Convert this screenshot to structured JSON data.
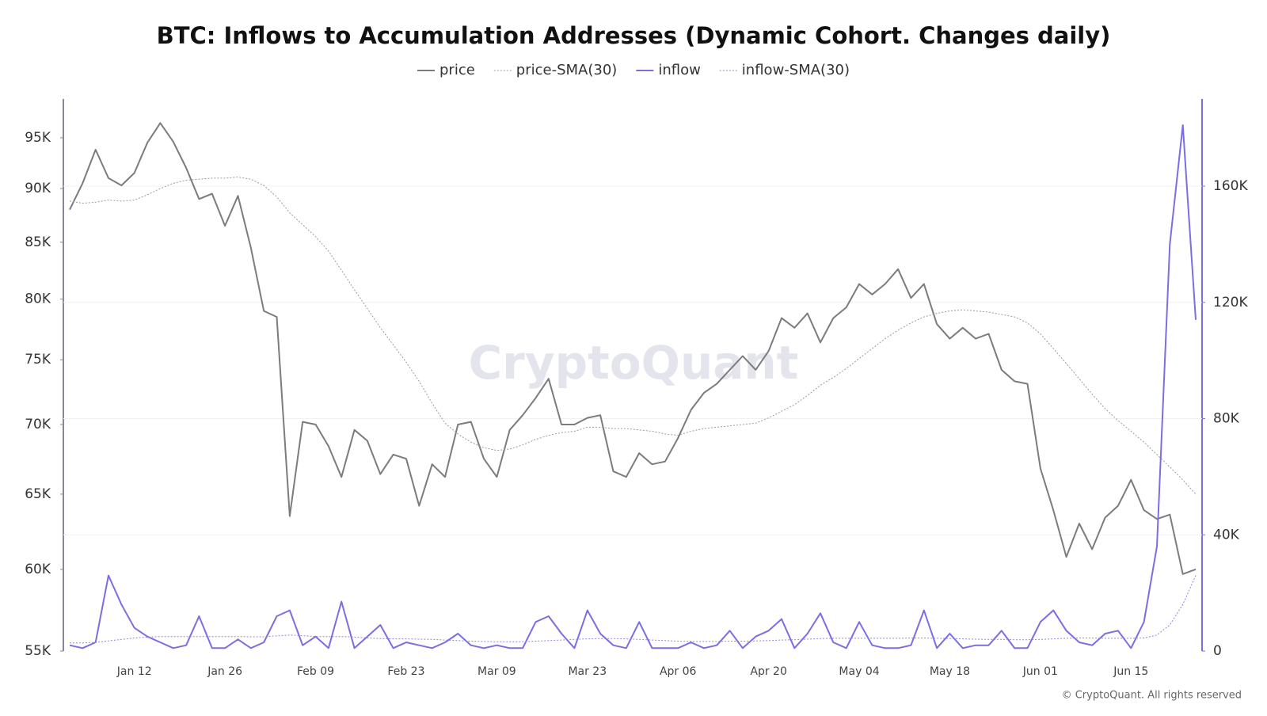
{
  "chart_data": {
    "type": "line",
    "title": "BTC: Inflows to Accumulation Addresses (Dynamic Cohort. Changes daily)",
    "watermark": "CryptoQuant",
    "copyright": "© CryptoQuant. All rights reserved",
    "categories": [
      null,
      null,
      null,
      null,
      null,
      "Jan 12",
      null,
      null,
      null,
      null,
      null,
      null,
      "Jan 26",
      null,
      null,
      null,
      null,
      null,
      null,
      "Feb 09",
      null,
      null,
      null,
      null,
      null,
      null,
      "Feb 23",
      null,
      null,
      null,
      null,
      null,
      null,
      "Mar 09",
      null,
      null,
      null,
      null,
      null,
      null,
      "Mar 23",
      null,
      null,
      null,
      null,
      null,
      null,
      "Apr 06",
      null,
      null,
      null,
      null,
      null,
      null,
      "Apr 20",
      null,
      null,
      null,
      null,
      null,
      null,
      "May 04",
      null,
      null,
      null,
      null,
      null,
      null,
      "May 18",
      null,
      null,
      null,
      null,
      null,
      null,
      "Jun 01",
      null,
      null,
      null,
      null,
      null,
      null,
      "Jun 15",
      null,
      null,
      null,
      null,
      null
    ],
    "ylim": [
      55000,
      99000
    ],
    "y_log_scale": true,
    "yticks": [
      {
        "value": 55000,
        "label": "55K"
      },
      {
        "value": 60000,
        "label": "60K"
      },
      {
        "value": 65000,
        "label": "65K"
      },
      {
        "value": 70000,
        "label": "70K"
      },
      {
        "value": 75000,
        "label": "75K"
      },
      {
        "value": 80000,
        "label": "80K"
      },
      {
        "value": 85000,
        "label": "85K"
      },
      {
        "value": 90000,
        "label": "90K"
      },
      {
        "value": 95000,
        "label": "95K"
      }
    ],
    "y2lim": [
      0,
      190000
    ],
    "y2ticks": [
      0,
      {
        "value": 40000,
        "label": "40K"
      },
      {
        "value": 80000,
        "label": "80K"
      },
      {
        "value": 120000,
        "label": "120K"
      },
      {
        "value": 160000,
        "label": "160K"
      }
    ],
    "grid": "y2",
    "legend": "top",
    "series": [
      {
        "name": "price",
        "color": "#7b7b80",
        "style": "solid",
        "values": [
          88000,
          90500,
          93800,
          91000,
          90300,
          91500,
          94500,
          96500,
          94600,
          92000,
          89000,
          89500,
          86500,
          89300,
          84500,
          79000,
          78500,
          63500,
          70200,
          70000,
          68400,
          66200,
          69600,
          68800,
          66400,
          67800,
          67500,
          64200,
          67100,
          66200,
          70000,
          70200,
          67500,
          66200,
          69600,
          70700,
          72000,
          73500,
          70000,
          70000,
          70500,
          70700,
          66600,
          66200,
          67900,
          67100,
          67300,
          69000,
          71100,
          72400,
          73100,
          74200,
          75300,
          74200,
          75700,
          78400,
          77600,
          78800,
          76400,
          78400,
          79300,
          81300,
          80400,
          81300,
          82600,
          80100,
          81300,
          77900,
          76700,
          77600,
          76700,
          77100,
          74200,
          73300,
          73100,
          66800,
          63900,
          60800,
          63000,
          61300,
          63400,
          64200,
          66000,
          63900,
          63300,
          63600,
          59700,
          60000
        ]
      },
      {
        "name": "price-SMA(30)",
        "color": "#9a9aa0",
        "style": "dotted",
        "values": [
          88800,
          88600,
          88700,
          88900,
          88800,
          88900,
          89400,
          90000,
          90500,
          90800,
          90900,
          91000,
          91000,
          91100,
          90900,
          90300,
          89200,
          87700,
          86600,
          85500,
          84200,
          82500,
          80800,
          79200,
          77600,
          76200,
          74800,
          73300,
          71600,
          70100,
          69300,
          68700,
          68300,
          68100,
          68200,
          68500,
          68900,
          69200,
          69400,
          69500,
          69800,
          69800,
          69700,
          69700,
          69600,
          69500,
          69300,
          69200,
          69500,
          69700,
          69800,
          69900,
          70000,
          70100,
          70500,
          71000,
          71500,
          72200,
          73000,
          73600,
          74300,
          75100,
          75900,
          76700,
          77400,
          78000,
          78500,
          78800,
          79000,
          79100,
          79000,
          78900,
          78700,
          78500,
          78000,
          77100,
          75900,
          74700,
          73500,
          72300,
          71200,
          70300,
          69500,
          68700,
          67800,
          66900,
          66000,
          65000
        ]
      },
      {
        "name": "inflow",
        "color": "#7b6ee0",
        "style": "solid",
        "axis": "y2",
        "values": [
          2000,
          1000,
          3000,
          26000,
          16000,
          8000,
          5000,
          3000,
          1000,
          2000,
          12000,
          1000,
          1000,
          4000,
          1000,
          3000,
          12000,
          14000,
          2000,
          5000,
          1000,
          17000,
          1000,
          5000,
          9000,
          1000,
          3000,
          2000,
          1000,
          3000,
          6000,
          2000,
          1000,
          2000,
          1000,
          1000,
          10000,
          12000,
          6000,
          1000,
          14000,
          6000,
          2000,
          1000,
          10000,
          1000,
          1000,
          1000,
          3000,
          1000,
          2000,
          7000,
          1000,
          5000,
          7000,
          11000,
          1000,
          6000,
          13000,
          3000,
          1000,
          10000,
          2000,
          1000,
          1000,
          2000,
          14000,
          1000,
          6000,
          1000,
          2000,
          2000,
          7000,
          1000,
          1000,
          10000,
          14000,
          7000,
          3000,
          2000,
          6000,
          7000,
          1000,
          10000,
          36000,
          140000,
          181000,
          114000
        ]
      },
      {
        "name": "inflow-SMA(30)",
        "color": "#8f84e6",
        "style": "dotted",
        "axis": "y2",
        "values": [
          2800,
          2800,
          3000,
          3500,
          4000,
          4500,
          4800,
          5000,
          5000,
          5000,
          5000,
          5000,
          5000,
          5000,
          4900,
          4900,
          5200,
          5500,
          5300,
          5000,
          5000,
          5000,
          4800,
          4500,
          4300,
          4200,
          4200,
          4100,
          4000,
          3800,
          3600,
          3400,
          3300,
          3200,
          3200,
          3200,
          3400,
          3600,
          3800,
          4000,
          4200,
          4300,
          4300,
          4200,
          4000,
          3800,
          3600,
          3400,
          3300,
          3300,
          3300,
          3400,
          3400,
          3500,
          3600,
          3800,
          3900,
          4100,
          4300,
          4400,
          4400,
          4400,
          4400,
          4400,
          4400,
          4500,
          4500,
          4400,
          4300,
          4200,
          4100,
          4000,
          4000,
          3900,
          3900,
          4000,
          4200,
          4400,
          4500,
          4500,
          4400,
          4400,
          4400,
          4500,
          5500,
          9000,
          16000,
          26000
        ]
      }
    ]
  }
}
